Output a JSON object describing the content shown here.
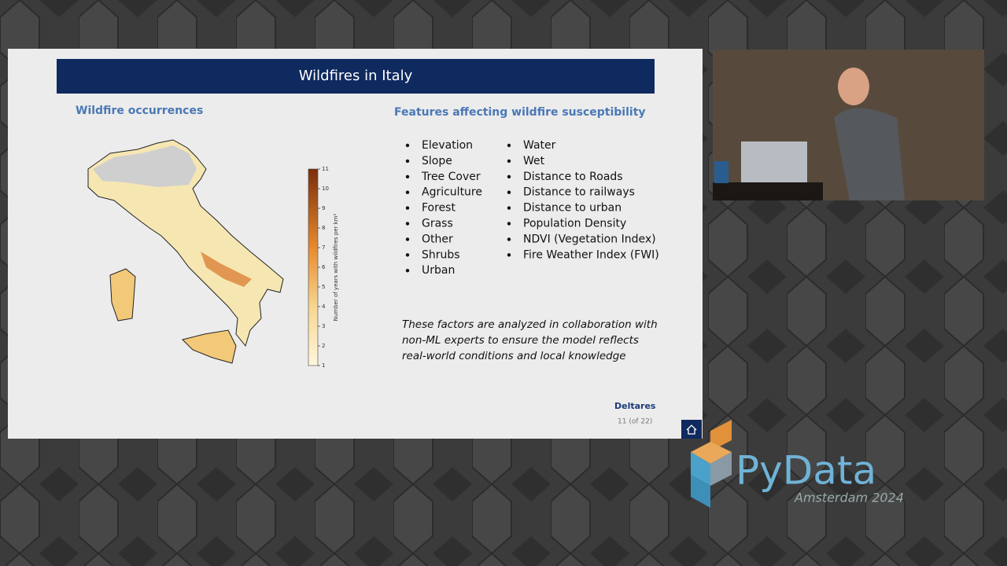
{
  "slide": {
    "title": "Wildfires in Italy",
    "left_heading": "Wildfire occurrences",
    "right_heading": "Features affecting wildfire susceptibility",
    "features_col1": [
      "Elevation",
      "Slope",
      "Tree Cover",
      "Agriculture",
      "Forest",
      "Grass",
      "Other",
      "Shrubs",
      "Urban"
    ],
    "features_col2": [
      "Water",
      "Wet",
      "Distance to Roads",
      "Distance to railways",
      "Distance to urban",
      "Population Density",
      "NDVI (Vegetation Index)",
      "Fire Weather Index (FWI)"
    ],
    "note_lines": [
      "These factors are analyzed in collaboration with",
      "non-ML experts to ensure the model reflects",
      "real-world conditions and local knowledge"
    ],
    "brand": "Deltares",
    "page": "11 (of 22)",
    "colorbar": {
      "label": "Number of years with wildfires per km²",
      "lim": [
        1,
        11
      ],
      "ticks": [
        1,
        2,
        3,
        4,
        5,
        6,
        7,
        8,
        9,
        10,
        11
      ]
    }
  },
  "event": {
    "name": "PyData",
    "subtitle": "Amsterdam 2024"
  }
}
